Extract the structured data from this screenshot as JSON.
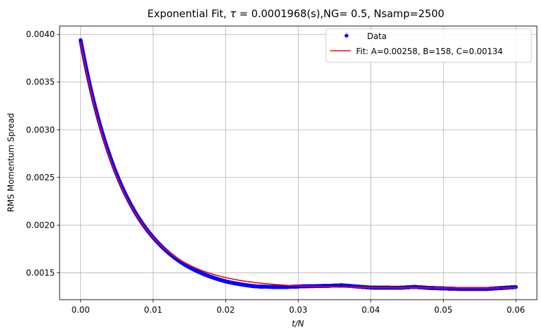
{
  "chart_data": {
    "type": "scatter",
    "title_prefix": "Exponential Fit, ",
    "title_tau_symbol": "τ",
    "title_suffix": " = 0.0001968(s),NG= 0.5, Nsamp=2500",
    "xlabel": "t/N",
    "ylabel": "RMS Momentum Spread",
    "xlim": [
      -0.0029,
      0.0629
    ],
    "ylim": [
      0.001218,
      0.004088
    ],
    "xticks": [
      0.0,
      0.01,
      0.02,
      0.03,
      0.04,
      0.05,
      0.06
    ],
    "xtick_labels": [
      "0.00",
      "0.01",
      "0.02",
      "0.03",
      "0.04",
      "0.05",
      "0.06"
    ],
    "yticks": [
      0.0015,
      0.002,
      0.0025,
      0.003,
      0.0035,
      0.004
    ],
    "ytick_labels": [
      "0.0015",
      "0.0020",
      "0.0025",
      "0.0030",
      "0.0035",
      "0.0040"
    ],
    "grid": true,
    "legend_position": "top-right",
    "series": [
      {
        "name": "Data",
        "kind": "scatter",
        "color": "#0000ff",
        "x_start": 0.0,
        "x_end": 0.06,
        "n_points": 2500,
        "model_A": 0.00258,
        "model_B": 158,
        "model_C": 0.00134,
        "residuals": [
          {
            "x": 0.0,
            "dy": 2e-05
          },
          {
            "x": 0.004,
            "dy": 2e-05
          },
          {
            "x": 0.01,
            "dy": 0.0
          },
          {
            "x": 0.014,
            "dy": -2e-05
          },
          {
            "x": 0.02,
            "dy": -4e-05
          },
          {
            "x": 0.024,
            "dy": -4e-05
          },
          {
            "x": 0.028,
            "dy": -2e-05
          },
          {
            "x": 0.031,
            "dy": 0.0
          },
          {
            "x": 0.034,
            "dy": 1e-05
          },
          {
            "x": 0.036,
            "dy": 2e-05
          },
          {
            "x": 0.038,
            "dy": 1e-05
          },
          {
            "x": 0.04,
            "dy": 0.0
          },
          {
            "x": 0.044,
            "dy": 0.0
          },
          {
            "x": 0.046,
            "dy": 1e-05
          },
          {
            "x": 0.048,
            "dy": 0.0
          },
          {
            "x": 0.052,
            "dy": -1e-05
          },
          {
            "x": 0.056,
            "dy": -1e-05
          },
          {
            "x": 0.06,
            "dy": 1e-05
          }
        ]
      },
      {
        "name": "Fit: A=0.00258, B=158, C=0.00134",
        "kind": "line",
        "color": "#ff0000",
        "A": 0.00258,
        "B": 158,
        "C": 0.00134,
        "x_start": 0.0,
        "x_end": 0.06
      }
    ]
  }
}
